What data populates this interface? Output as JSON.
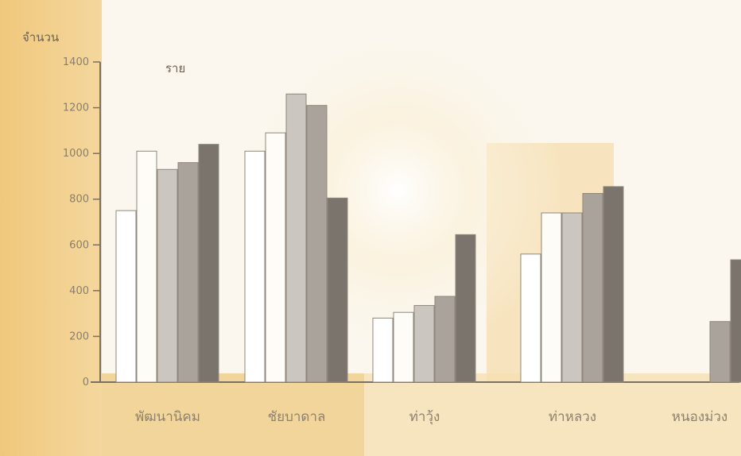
{
  "chart_data": {
    "type": "bar",
    "ylabel": "จำนวน",
    "unit_label": "ราย",
    "ylim": [
      0,
      1400
    ],
    "yticks": [
      0,
      200,
      400,
      600,
      800,
      1000,
      1200,
      1400
    ],
    "categories": [
      "พัฒนานิคม",
      "ชัยบาดาล",
      "ท่าวุ้ง",
      "ท่าหลวง",
      "หนองม่วง"
    ],
    "series": [
      {
        "values": [
          750,
          1010,
          280,
          560,
          null
        ],
        "color": "#ffffff"
      },
      {
        "values": [
          1010,
          1090,
          305,
          740,
          null
        ],
        "color": "#fdfcf7"
      },
      {
        "values": [
          930,
          1260,
          335,
          740,
          null
        ],
        "color": "#cbc7c0"
      },
      {
        "values": [
          960,
          1210,
          375,
          825,
          265
        ],
        "color": "#a9a39b"
      },
      {
        "values": [
          1040,
          805,
          645,
          855,
          535
        ],
        "color": "#7b746d"
      }
    ],
    "grid": false,
    "legend": "none"
  }
}
